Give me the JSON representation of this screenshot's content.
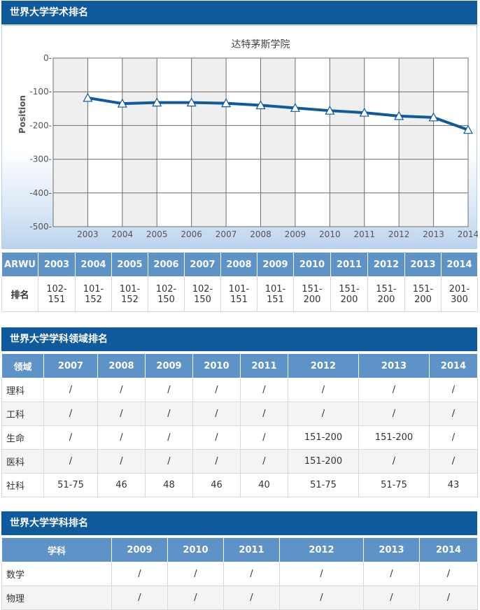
{
  "section1": {
    "title": "世界大学学术排名"
  },
  "chart_data": {
    "type": "line",
    "title": "达特茅斯学院",
    "xlabel": "",
    "ylabel": "Position",
    "categories": [
      "2003",
      "2004",
      "2005",
      "2006",
      "2007",
      "2008",
      "2009",
      "2010",
      "2011",
      "2012",
      "2013",
      "2014"
    ],
    "values": [
      -118,
      -135,
      -132,
      -132,
      -134,
      -140,
      -148,
      -156,
      -162,
      -172,
      -176,
      -213
    ],
    "ylim": [
      -500,
      0
    ],
    "yticks": [
      "0-",
      "-100-",
      "-200-",
      "-300-",
      "-400-",
      "-500-"
    ],
    "grid": true,
    "line_color": "#0f5a9c"
  },
  "arwu_table": {
    "header": [
      "ARWU",
      "2003",
      "2004",
      "2005",
      "2006",
      "2007",
      "2008",
      "2009",
      "2010",
      "2011",
      "2012",
      "2013",
      "2014"
    ],
    "row_label": "排名",
    "ranks": [
      "102-151",
      "101-152",
      "101-152",
      "102-150",
      "102-150",
      "101-151",
      "101-151",
      "151-200",
      "151-200",
      "151-200",
      "151-200",
      "201-300"
    ]
  },
  "section2": {
    "title": "世界大学学科领域排名"
  },
  "field_table": {
    "header": [
      "领域",
      "2007",
      "2008",
      "2009",
      "2010",
      "2011",
      "2012",
      "2013",
      "2014"
    ],
    "rows": [
      [
        "理科",
        "/",
        "/",
        "/",
        "/",
        "/",
        "/",
        "/",
        "/"
      ],
      [
        "工科",
        "/",
        "/",
        "/",
        "/",
        "/",
        "/",
        "/",
        "/"
      ],
      [
        "生命",
        "/",
        "/",
        "/",
        "/",
        "/",
        "151-200",
        "151-200",
        "/"
      ],
      [
        "医科",
        "/",
        "/",
        "/",
        "/",
        "/",
        "151-200",
        "/",
        "/"
      ],
      [
        "社科",
        "51-75",
        "46",
        "48",
        "46",
        "40",
        "51-75",
        "51-75",
        "43"
      ]
    ]
  },
  "section3": {
    "title": "世界大学学科排名"
  },
  "subject_table": {
    "header": [
      "学科",
      "2009",
      "2010",
      "2011",
      "2012",
      "2013",
      "2014"
    ],
    "rows": [
      [
        "数学",
        "/",
        "/",
        "/",
        "/",
        "/",
        "/"
      ],
      [
        "物理",
        "/",
        "/",
        "/",
        "/",
        "/",
        "/"
      ]
    ]
  }
}
